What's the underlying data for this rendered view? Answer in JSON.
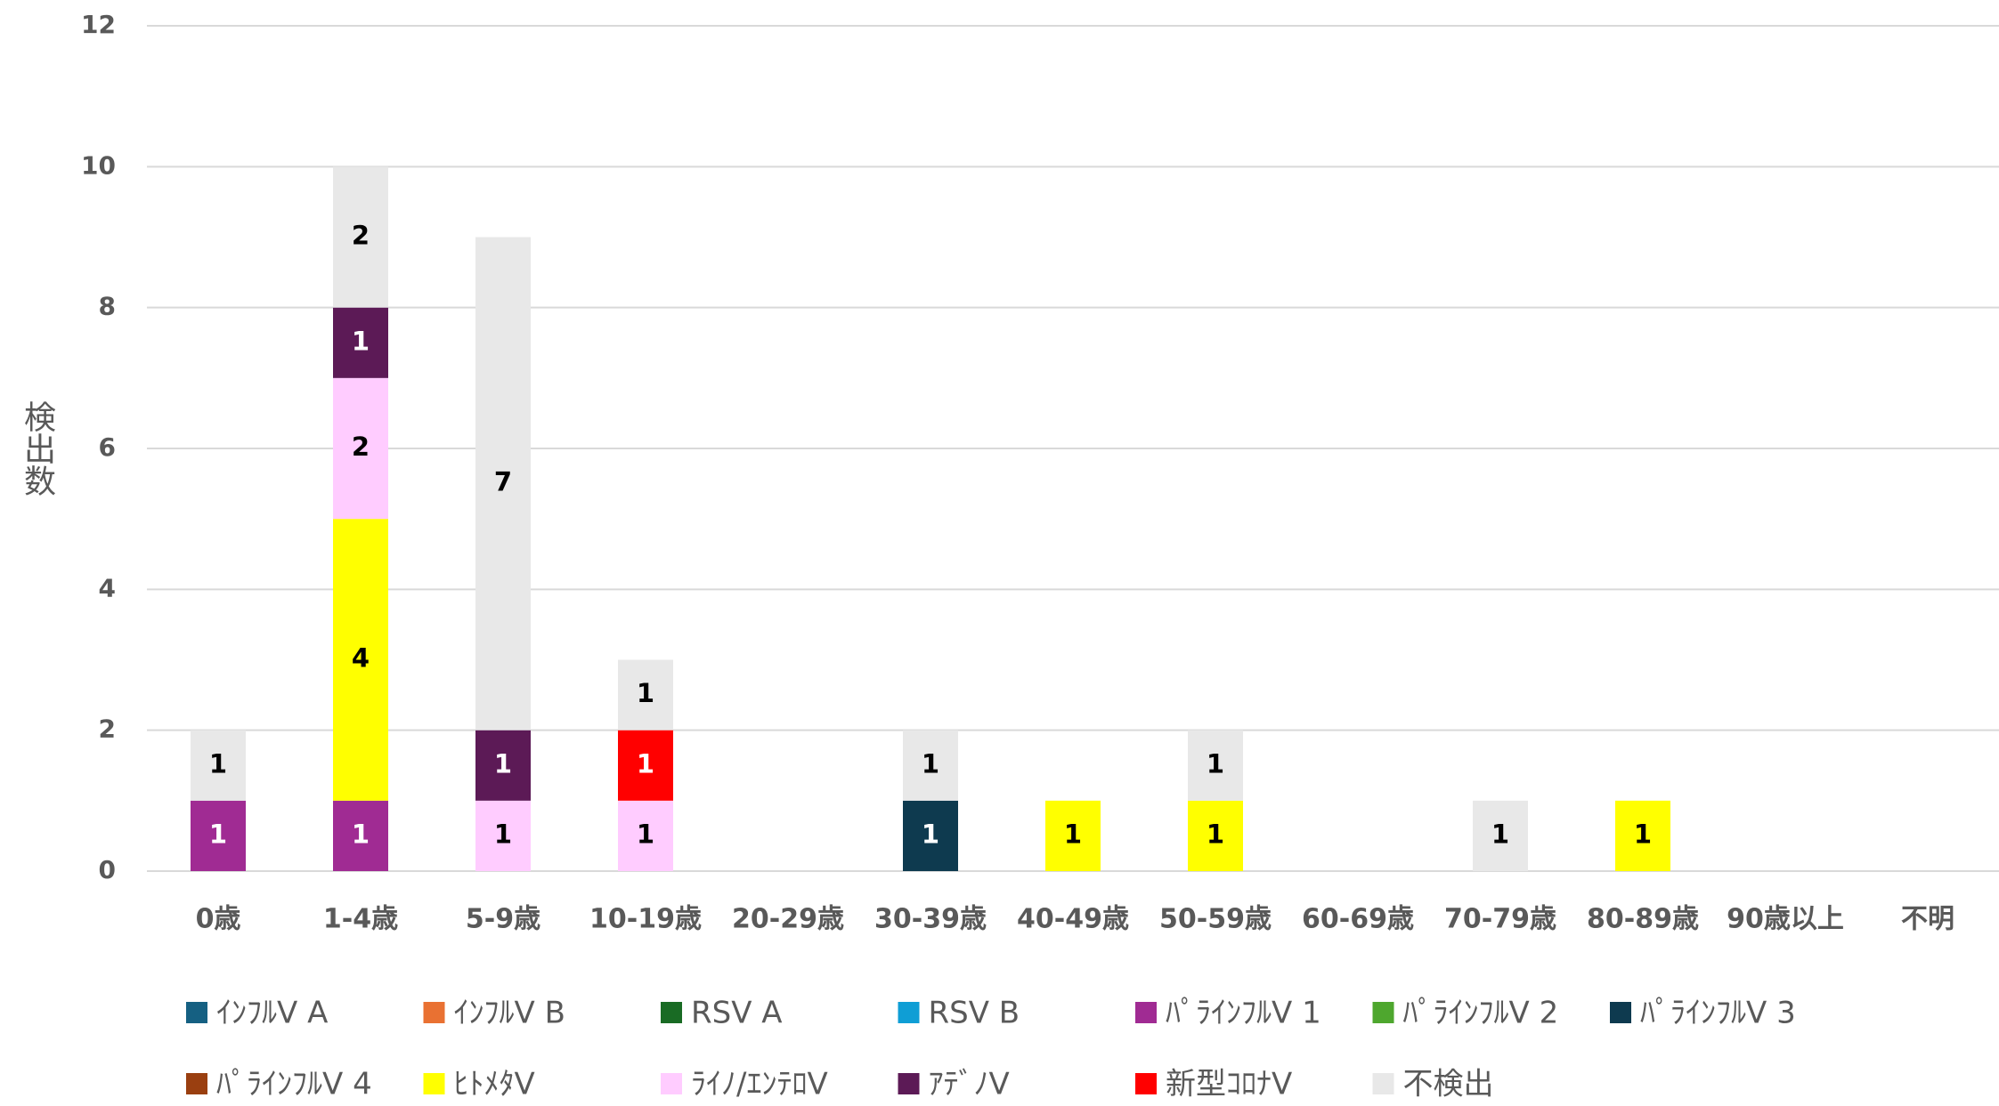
{
  "chart_data": {
    "type": "stacked_bar",
    "y_label": "検出数",
    "categories": [
      "0歳",
      "1-4歳",
      "5-9歳",
      "10-19歳",
      "20-29歳",
      "30-39歳",
      "40-49歳",
      "50-59歳",
      "60-69歳",
      "70-79歳",
      "80-89歳",
      "90歳以上",
      "不明"
    ],
    "series": [
      {
        "name": "ｲﾝﾌﾙV A",
        "color": "#156082",
        "values": [
          0,
          0,
          0,
          0,
          0,
          0,
          0,
          0,
          0,
          0,
          0,
          0,
          0
        ]
      },
      {
        "name": "ｲﾝﾌﾙV B",
        "color": "#e97132",
        "values": [
          0,
          0,
          0,
          0,
          0,
          0,
          0,
          0,
          0,
          0,
          0,
          0,
          0
        ]
      },
      {
        "name": "RSV A",
        "color": "#196b24",
        "values": [
          0,
          0,
          0,
          0,
          0,
          0,
          0,
          0,
          0,
          0,
          0,
          0,
          0
        ]
      },
      {
        "name": "RSV B",
        "color": "#0f9ed5",
        "values": [
          0,
          0,
          0,
          0,
          0,
          0,
          0,
          0,
          0,
          0,
          0,
          0,
          0
        ]
      },
      {
        "name": "ﾊﾟﾗｲﾝﾌﾙV 1",
        "color": "#a02b93",
        "values": [
          1,
          1,
          0,
          0,
          0,
          0,
          0,
          0,
          0,
          0,
          0,
          0,
          0
        ]
      },
      {
        "name": "ﾊﾟﾗｲﾝﾌﾙV 2",
        "color": "#4ea72e",
        "values": [
          0,
          0,
          0,
          0,
          0,
          0,
          0,
          0,
          0,
          0,
          0,
          0,
          0
        ]
      },
      {
        "name": "ﾊﾟﾗｲﾝﾌﾙV 3",
        "color": "#0e3a4f",
        "values": [
          0,
          0,
          0,
          0,
          0,
          1,
          0,
          0,
          0,
          0,
          0,
          0,
          0
        ]
      },
      {
        "name": "ﾊﾟﾗｲﾝﾌﾙV 4",
        "color": "#9a3f10",
        "values": [
          0,
          0,
          0,
          0,
          0,
          0,
          0,
          0,
          0,
          0,
          0,
          0,
          0
        ]
      },
      {
        "name": "ﾋﾄﾒﾀV",
        "color": "#ffff00",
        "values": [
          0,
          4,
          0,
          0,
          0,
          0,
          1,
          1,
          0,
          0,
          1,
          0,
          0
        ]
      },
      {
        "name": "ﾗｲﾉ/ｴﾝﾃﾛV",
        "color": "#ffccff",
        "values": [
          0,
          2,
          1,
          1,
          0,
          0,
          0,
          0,
          0,
          0,
          0,
          0,
          0
        ]
      },
      {
        "name": "ｱﾃﾞﾉV",
        "color": "#5c1a56",
        "values": [
          0,
          1,
          1,
          0,
          0,
          0,
          0,
          0,
          0,
          0,
          0,
          0,
          0
        ]
      },
      {
        "name": "新型ｺﾛﾅV",
        "color": "#ff0000",
        "values": [
          0,
          0,
          0,
          1,
          0,
          0,
          0,
          0,
          0,
          0,
          0,
          0,
          0
        ]
      },
      {
        "name": "不検出",
        "color": "#e8e8e8",
        "values": [
          1,
          2,
          7,
          1,
          0,
          1,
          0,
          1,
          0,
          1,
          0,
          0,
          0
        ]
      }
    ],
    "ylim": [
      0,
      12
    ],
    "yticks": [
      0,
      2,
      4,
      6,
      8,
      10,
      12
    ],
    "grid": true
  }
}
